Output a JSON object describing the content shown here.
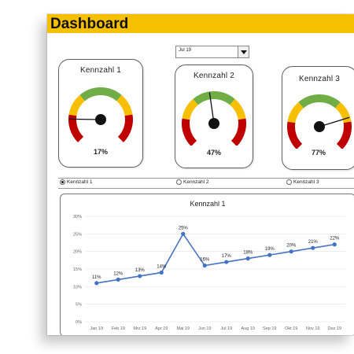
{
  "header": {
    "title": "Dashboard"
  },
  "period_select": {
    "value": "Jul 19"
  },
  "gauges": [
    {
      "title": "Kennzahl  1",
      "value": 0.17,
      "label": "17%"
    },
    {
      "title": "Kennzahl  2",
      "value": 0.47,
      "label": "47%"
    },
    {
      "title": "Kennzahl  3",
      "value": 0.77,
      "label": "77%"
    }
  ],
  "gauge_colors": {
    "red": "#c00000",
    "yellow": "#f6c000",
    "green": "#70ad47"
  },
  "radio_options": [
    {
      "label": "Kennzahl 1",
      "selected": true
    },
    {
      "label": "Kennzahl 2",
      "selected": false
    },
    {
      "label": "Kennzahl 3",
      "selected": false
    }
  ],
  "chart_data": {
    "type": "line",
    "title": "Kennzahl  1",
    "categories": [
      "Jan 19",
      "Feb 19",
      "Mrz 19",
      "Apr 19",
      "Mai 19",
      "Jun 19",
      "Jul 19",
      "Aug 19",
      "Sep 19",
      "Okt 19",
      "Nov 19",
      "Dez 19"
    ],
    "values": [
      11,
      12,
      13,
      14,
      25,
      16,
      17,
      18,
      19,
      20,
      21,
      22
    ],
    "data_labels": [
      "11%",
      "12%",
      "13%",
      "14%",
      "25%",
      "16%",
      "17%",
      "18%",
      "19%",
      "20%",
      "21%",
      "22%"
    ],
    "y_ticks": [
      "0%",
      "5%",
      "10%",
      "15%",
      "20%",
      "25%",
      "30%"
    ],
    "ylim": [
      0,
      30
    ],
    "grid": true,
    "line_color": "#4472c4"
  }
}
